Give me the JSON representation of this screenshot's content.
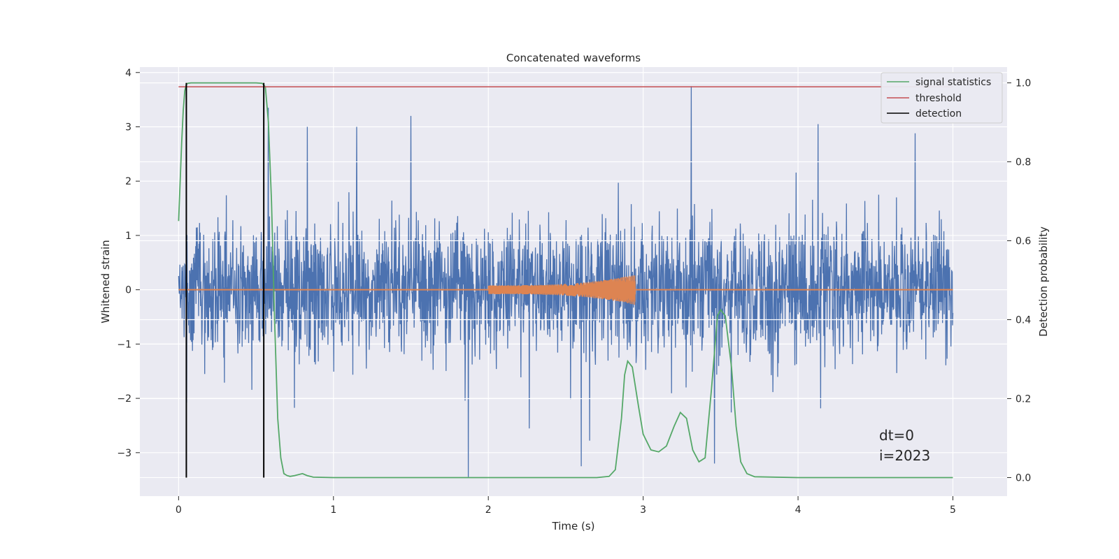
{
  "chart_data": {
    "type": "line",
    "title": "Concatenated waveforms",
    "xlabel": "Time (s)",
    "ylabel": "Whitened strain",
    "y2label": "Detection probability",
    "xlim": [
      -0.25,
      5.35
    ],
    "ylim": [
      -3.8,
      4.1
    ],
    "y2lim": [
      -0.047,
      1.04
    ],
    "xticks": [
      0,
      1,
      2,
      3,
      4,
      5
    ],
    "xtick_labels": [
      "0",
      "1",
      "2",
      "3",
      "4",
      "5"
    ],
    "yticks": [
      -3,
      -2,
      -1,
      0,
      1,
      2,
      3,
      4
    ],
    "ytick_labels": [
      "−3",
      "−2",
      "−1",
      "0",
      "1",
      "2",
      "3",
      "4"
    ],
    "y2ticks": [
      0.0,
      0.2,
      0.4,
      0.6,
      0.8,
      1.0
    ],
    "y2tick_labels": [
      "0.0",
      "0.2",
      "0.4",
      "0.6",
      "0.8",
      "1.0"
    ],
    "grid": true,
    "legend_position": "top-right",
    "noise": {
      "x_range": [
        0,
        5
      ],
      "typical_range": [
        -1.6,
        1.6
      ],
      "peaks": [
        {
          "x": 0.58,
          "y": 3.35
        },
        {
          "x": 1.15,
          "y": 3.0
        },
        {
          "x": 1.5,
          "y": 3.2
        },
        {
          "x": 2.6,
          "y": -3.25
        },
        {
          "x": 3.31,
          "y": 3.75
        },
        {
          "x": 3.46,
          "y": -3.2
        },
        {
          "x": 4.13,
          "y": 3.05
        },
        {
          "x": 1.87,
          "y": -3.45
        }
      ]
    },
    "series": [
      {
        "name": "signal statistics",
        "axis": "right",
        "x": [
          0.0,
          0.01,
          0.02,
          0.03,
          0.04,
          0.05,
          0.06,
          0.08,
          0.1,
          0.2,
          0.3,
          0.4,
          0.5,
          0.54,
          0.56,
          0.58,
          0.6,
          0.62,
          0.64,
          0.66,
          0.68,
          0.7,
          0.72,
          0.75,
          0.8,
          0.83,
          0.87,
          1.0,
          2.0,
          2.7,
          2.78,
          2.82,
          2.86,
          2.88,
          2.9,
          2.93,
          2.97,
          3.0,
          3.05,
          3.1,
          3.15,
          3.2,
          3.24,
          3.28,
          3.32,
          3.36,
          3.4,
          3.44,
          3.48,
          3.5,
          3.53,
          3.57,
          3.6,
          3.63,
          3.67,
          3.72,
          4.0,
          5.0
        ],
        "y": [
          0.65,
          0.75,
          0.85,
          0.93,
          0.98,
          0.996,
          0.999,
          1.0,
          1.0,
          1.0,
          1.0,
          1.0,
          1.0,
          0.999,
          0.99,
          0.9,
          0.7,
          0.4,
          0.15,
          0.05,
          0.01,
          0.005,
          0.003,
          0.005,
          0.01,
          0.005,
          0.001,
          0.0,
          0.0,
          0.0,
          0.003,
          0.02,
          0.15,
          0.26,
          0.295,
          0.28,
          0.18,
          0.11,
          0.07,
          0.065,
          0.08,
          0.13,
          0.165,
          0.15,
          0.07,
          0.04,
          0.05,
          0.22,
          0.41,
          0.425,
          0.41,
          0.28,
          0.13,
          0.04,
          0.01,
          0.002,
          0.0,
          0.0
        ],
        "color": "#55a868"
      },
      {
        "name": "threshold",
        "axis": "right",
        "x": [
          0,
          5
        ],
        "y": [
          0.99,
          0.99
        ],
        "color": "#c44e52"
      },
      {
        "name": "detection",
        "axis": "right",
        "vlines": [
          0.05,
          0.55
        ],
        "y": [
          0,
          1
        ],
        "color": "#000000"
      }
    ],
    "injected_waveform": {
      "x_range": [
        2.0,
        2.95
      ],
      "amplitude_start": 0.08,
      "amplitude_end": 0.28,
      "color": "#dd8452"
    },
    "colors": {
      "noise": "#4c72b0",
      "background": "#eaeaf2",
      "grid": "#ffffff"
    },
    "annotations": [
      "dt=0",
      "i=2023"
    ]
  }
}
